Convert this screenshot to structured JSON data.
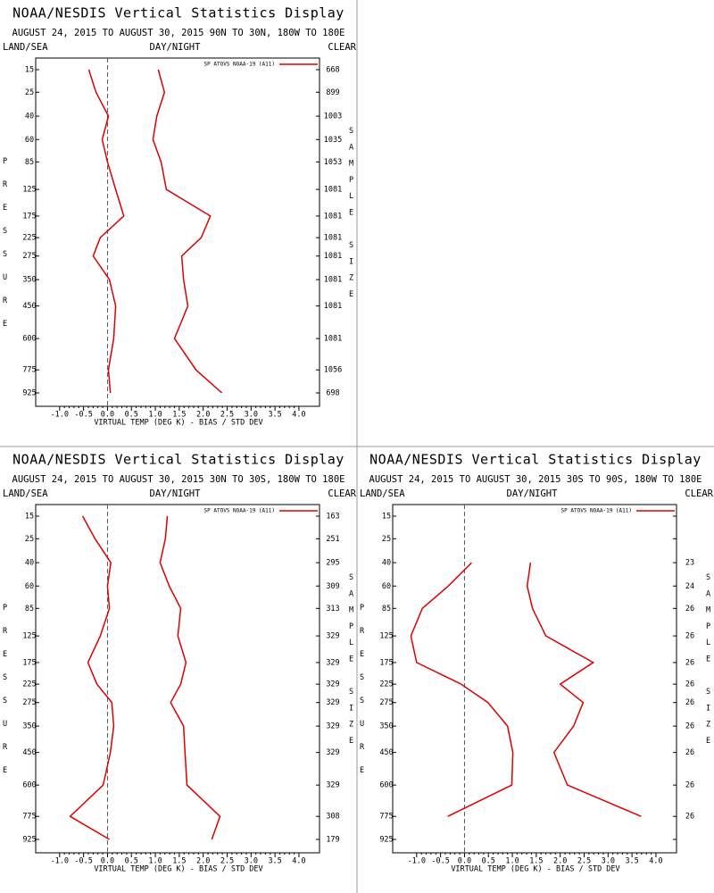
{
  "chart_data": [
    {
      "type": "line",
      "title": "NOAA/NESDIS Vertical Statistics Display",
      "subtitle": "AUGUST 24, 2015 TO AUGUST 30, 2015 90N TO 30N, 180W TO 180E",
      "land_sea": "LAND/SEA",
      "day_night": "DAY/NIGHT",
      "clear": "CLEAR",
      "y_label": "PRESSURE",
      "y2_label": "SAMPLE SIZE",
      "x_label": "VIRTUAL TEMP (DEG K) - BIAS / STD DEV",
      "y": [
        15,
        25,
        40,
        60,
        85,
        125,
        175,
        225,
        275,
        350,
        450,
        600,
        775,
        925
      ],
      "sample_size": [
        668,
        899,
        1003,
        1035,
        1053,
        1081,
        1081,
        1081,
        1081,
        1081,
        1081,
        1081,
        1056,
        698
      ],
      "series": [
        {
          "name": "SP ATOVS NOAA-19 (A11)",
          "color": "#dd0000",
          "bias": [
            -0.39,
            -0.24,
            0.02,
            -0.11,
            0,
            0.17,
            0.34,
            -0.15,
            -0.3,
            0.04,
            0.17,
            0.13,
            0.02,
            0.06
          ],
          "std_dev": [
            1.06,
            1.19,
            1.03,
            0.95,
            1.12,
            1.23,
            2.15,
            1.96,
            1.55,
            1.59,
            1.68,
            1.4,
            1.85,
            2.39
          ]
        }
      ],
      "xlim": [
        -1.5,
        4.43
      ],
      "ylim": [
        15,
        925
      ],
      "xticks": [
        {
          "value": -1,
          "label": "-1.0"
        },
        -0.5,
        {
          "value": 0,
          "label": "0.0"
        },
        0.5,
        {
          "value": 1,
          "label": "1.0"
        },
        1.5,
        {
          "value": 2,
          "label": "2.0"
        },
        2.5,
        {
          "value": 3,
          "label": "3.0"
        },
        3.5,
        {
          "value": 4,
          "label": "4.0"
        }
      ]
    },
    {
      "type": "line",
      "title": "NOAA/NESDIS Vertical Statistics Display",
      "subtitle": "AUGUST 24, 2015 TO AUGUST 30, 2015 30N TO 30S, 180W TO 180E",
      "land_sea": "LAND/SEA",
      "day_night": "DAY/NIGHT",
      "clear": "CLEAR",
      "y_label": "PRESSURE",
      "y2_label": "SAMPLE SIZE",
      "x_label": "VIRTUAL TEMP (DEG K) - BIAS / STD DEV",
      "y": [
        15,
        25,
        40,
        60,
        85,
        125,
        175,
        225,
        275,
        350,
        450,
        600,
        775,
        925
      ],
      "sample_size": [
        163,
        251,
        295,
        309,
        313,
        329,
        329,
        329,
        329,
        329,
        329,
        329,
        308,
        179
      ],
      "series": [
        {
          "name": "SP ATOVS NOAA-19 (A11)",
          "color": "#dd0000",
          "bias": [
            -0.52,
            -0.26,
            0.07,
            0,
            0.04,
            -0.15,
            -0.41,
            -0.22,
            0.09,
            0.13,
            0.06,
            -0.09,
            -0.78,
            0.04
          ],
          "std_dev": [
            1.25,
            1.21,
            1.1,
            1.29,
            1.53,
            1.47,
            1.64,
            1.53,
            1.32,
            1.59,
            1.62,
            1.66,
            2.35,
            2.18
          ]
        }
      ],
      "xlim": [
        -1.5,
        4.43
      ],
      "ylim": [
        15,
        925
      ],
      "xticks": [
        {
          "value": -1,
          "label": "-1.0"
        },
        -0.5,
        {
          "value": 0,
          "label": "0.0"
        },
        0.5,
        {
          "value": 1,
          "label": "1.0"
        },
        1.5,
        {
          "value": 2,
          "label": "2.0"
        },
        2.5,
        {
          "value": 3,
          "label": "3.0"
        },
        3.5,
        {
          "value": 4,
          "label": "4.0"
        }
      ]
    },
    {
      "type": "line",
      "title": "NOAA/NESDIS Vertical Statistics Display",
      "subtitle": "AUGUST 24, 2015 TO AUGUST 30, 2015 30S TO 90S, 180W TO 180E",
      "land_sea": "LAND/SEA",
      "day_night": "DAY/NIGHT",
      "clear": "CLEAR",
      "y_label": "PRESSURE",
      "y2_label": "SAMPLE SIZE",
      "x_label": "VIRTUAL TEMP (DEG K) - BIAS / STD DEV",
      "y": [
        15,
        25,
        40,
        60,
        85,
        125,
        175,
        225,
        275,
        350,
        450,
        600,
        775,
        925
      ],
      "sample_size": [
        null,
        null,
        23,
        24,
        26,
        26,
        26,
        26,
        26,
        26,
        26,
        26,
        26,
        null
      ],
      "series": [
        {
          "name": "SP ATOVS NOAA-19 (A11)",
          "color": "#dd0000",
          "bias": [
            null,
            null,
            0.15,
            -0.34,
            -0.88,
            -1.12,
            -1.0,
            -0.07,
            0.49,
            0.9,
            1.01,
            0.99,
            -0.35,
            null
          ],
          "std_dev": [
            null,
            null,
            1.38,
            1.31,
            1.42,
            1.7,
            2.69,
            2.0,
            2.48,
            2.28,
            1.87,
            2.15,
            3.69,
            null
          ]
        }
      ],
      "xlim": [
        -1.5,
        4.43
      ],
      "ylim": [
        15,
        925
      ],
      "xticks": [
        {
          "value": -1,
          "label": "-1.0"
        },
        -0.5,
        {
          "value": 0,
          "label": "0.0"
        },
        0.5,
        {
          "value": 1,
          "label": "1.0"
        },
        1.5,
        {
          "value": 2,
          "label": "2.0"
        },
        2.5,
        {
          "value": 3,
          "label": "3.0"
        },
        3.5,
        {
          "value": 4,
          "label": "4.0"
        }
      ]
    }
  ]
}
